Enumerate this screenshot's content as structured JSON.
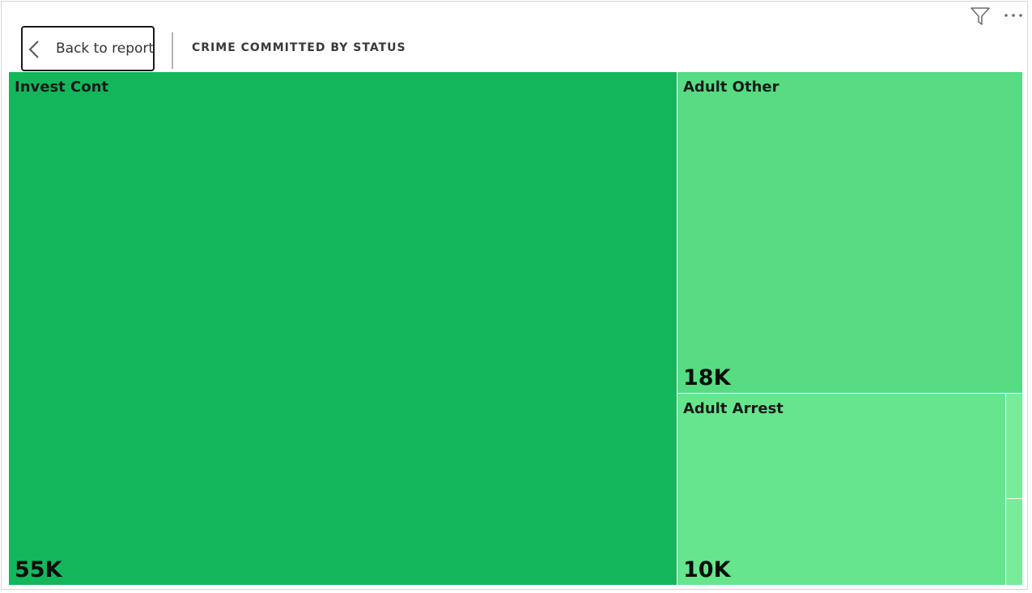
{
  "header": {
    "back_label": "Back to report",
    "title": "CRIME COMMITTED BY STATUS"
  },
  "icons": {
    "back": "chevron-left-icon",
    "filter": "filter-icon",
    "more": "more-options-icon"
  },
  "chart_data": {
    "type": "treemap",
    "title": "CRIME COMMITTED BY STATUS",
    "tiles": [
      {
        "label": "Invest Cont",
        "value_label": "55K",
        "value": 55000,
        "color": "#14b65b"
      },
      {
        "label": "Adult Other",
        "value_label": "18K",
        "value": 18000,
        "color": "#57db83"
      },
      {
        "label": "Adult Arrest",
        "value_label": "10K",
        "value": 10000,
        "color": "#67e58d"
      },
      {
        "label": "",
        "value_label": "",
        "color": "#79ec9b"
      },
      {
        "label": "",
        "value_label": "",
        "color": "#79ec9b"
      }
    ]
  }
}
